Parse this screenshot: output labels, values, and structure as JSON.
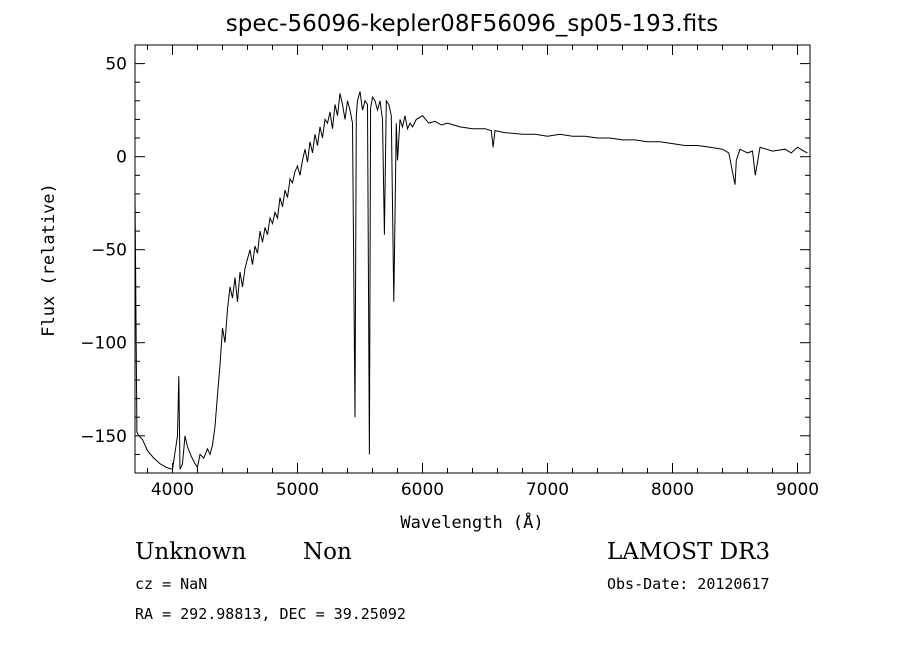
{
  "chart_data": {
    "type": "line",
    "title": "spec-56096-kepler08F56096_sp05-193.fits",
    "xlabel": "Wavelength (Å)",
    "ylabel": "Flux (relative)",
    "xlim": [
      3700,
      9100
    ],
    "ylim": [
      -170,
      60
    ],
    "x_ticks": [
      4000,
      5000,
      6000,
      7000,
      8000,
      9000
    ],
    "y_ticks": [
      50,
      0,
      -50,
      -100,
      -150
    ],
    "x_tick_labels": [
      "4000",
      "5000",
      "6000",
      "7000",
      "8000",
      "9000"
    ],
    "y_tick_labels": [
      "50",
      "0",
      "−50",
      "−100",
      "−150"
    ],
    "grid": false,
    "series": [
      {
        "x": [
          3700,
          3715,
          3730,
          3760,
          3800,
          3850,
          3900,
          3950,
          4000,
          4040,
          4050,
          4060,
          4080,
          4100,
          4120,
          4150,
          4180,
          4200,
          4220,
          4250,
          4280,
          4300,
          4320,
          4340,
          4360,
          4380,
          4400,
          4420,
          4440,
          4460,
          4480,
          4500,
          4520,
          4540,
          4560,
          4580,
          4600,
          4620,
          4640,
          4660,
          4680,
          4700,
          4720,
          4740,
          4760,
          4780,
          4800,
          4820,
          4840,
          4860,
          4880,
          4900,
          4920,
          4940,
          4960,
          4980,
          5000,
          5020,
          5040,
          5060,
          5080,
          5100,
          5120,
          5140,
          5160,
          5180,
          5200,
          5220,
          5240,
          5260,
          5280,
          5300,
          5320,
          5340,
          5360,
          5380,
          5400,
          5420,
          5440,
          5460,
          5470,
          5480,
          5500,
          5520,
          5540,
          5560,
          5575,
          5585,
          5600,
          5620,
          5640,
          5660,
          5680,
          5695,
          5710,
          5730,
          5750,
          5770,
          5790,
          5800,
          5820,
          5840,
          5860,
          5880,
          5900,
          5920,
          5950,
          6000,
          6050,
          6100,
          6150,
          6200,
          6250,
          6300,
          6400,
          6500,
          6550,
          6565,
          6580,
          6650,
          6800,
          6900,
          7000,
          7100,
          7200,
          7300,
          7400,
          7500,
          7600,
          7700,
          7800,
          7900,
          8000,
          8100,
          8200,
          8300,
          8400,
          8450,
          8500,
          8510,
          8540,
          8600,
          8640,
          8662,
          8700,
          8800,
          8900,
          8950,
          9000,
          9050,
          9080
        ],
        "y": [
          -20,
          -148,
          -150,
          -152,
          -158,
          -162,
          -165,
          -167,
          -168,
          -150,
          -118,
          -168,
          -165,
          -150,
          -156,
          -161,
          -165,
          -167,
          -160,
          -162,
          -157,
          -160,
          -155,
          -145,
          -128,
          -112,
          -92,
          -100,
          -82,
          -70,
          -76,
          -65,
          -78,
          -62,
          -70,
          -60,
          -55,
          -50,
          -58,
          -48,
          -52,
          -40,
          -46,
          -38,
          -42,
          -33,
          -36,
          -30,
          -33,
          -22,
          -27,
          -18,
          -22,
          -12,
          -14,
          -8,
          -5,
          -10,
          -2,
          4,
          -3,
          8,
          2,
          12,
          6,
          16,
          10,
          20,
          18,
          24,
          15,
          28,
          22,
          34,
          28,
          20,
          30,
          25,
          18,
          -140,
          22,
          30,
          35,
          25,
          30,
          28,
          -160,
          26,
          32,
          30,
          25,
          30,
          20,
          -42,
          30,
          28,
          22,
          -78,
          18,
          -2,
          20,
          16,
          22,
          15,
          18,
          16,
          20,
          22,
          18,
          19,
          17,
          18,
          17,
          16,
          15,
          15,
          14,
          5,
          14,
          13,
          12,
          12,
          11,
          12,
          11,
          11,
          10,
          10,
          9,
          9,
          8,
          8,
          7,
          6,
          6,
          5,
          4,
          2,
          -15,
          -2,
          4,
          2,
          3,
          -10,
          5,
          3,
          4,
          2,
          5,
          3,
          2
        ]
      }
    ]
  },
  "annotations": {
    "object_type": "Unknown",
    "object_class": "Non",
    "survey": "LAMOST DR3",
    "cz": "cz = NaN",
    "obs_date": "Obs-Date: 20120617",
    "coords": "RA = 292.98813, DEC =  39.25092"
  }
}
